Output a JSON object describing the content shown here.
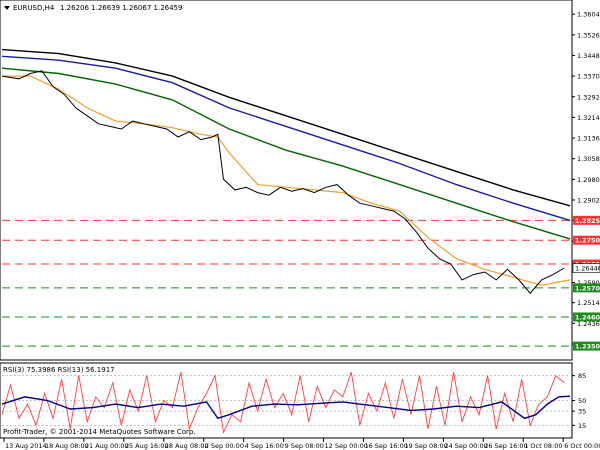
{
  "window": {
    "symbol": "EURUSD,H4",
    "ohlc": "1.26206 1.26639 1.26067 1.26459",
    "rsi_header": "RSI(3) 75.3986  RSI(13) 56.1917",
    "copyright": "Profit-Trader, © 2001-2014 MetaQuotes Software Corp.",
    "menu_icon": "triangle-down-icon"
  },
  "colors": {
    "sma_black": "#000000",
    "sma_blue": "#1a1aa0",
    "sma_green": "#006400",
    "sma_orange": "#f0a030",
    "rsi_fast": "#ff4040",
    "rsi_slow": "#00008b",
    "res_lines": "#ff3333",
    "sup_lines": "#1f8a1f"
  },
  "chart_data": {
    "type": "line",
    "price_axis": {
      "labels": [
        "1.36040",
        "1.35260",
        "1.34480",
        "1.33700",
        "1.32920",
        "1.32140",
        "1.31360",
        "1.30580",
        "1.29800",
        "1.29020",
        "1.28240",
        "1.27460",
        "1.26680",
        "1.25900",
        "1.25140",
        "1.24360",
        "1.23580"
      ],
      "ylim": [
        1.2305,
        1.365
      ]
    },
    "time_axis": {
      "labels": [
        "13 Aug 2014",
        "18 Aug 08:00",
        "21 Aug 00:00",
        "25 Aug 16:00",
        "28 Aug 08:00",
        "2 Sep 00:00",
        "4 Sep 16:00",
        "9 Sep 08:00",
        "12 Sep 00:00",
        "16 Sep 16:00",
        "19 Sep 08:00",
        "24 Sep 00:00",
        "26 Sep 16:00",
        "1 Oct 08:00",
        "6 Oct 00:00"
      ],
      "xlim": [
        0,
        100
      ]
    },
    "current_price": {
      "label": "1.26446",
      "value": 1.26446
    },
    "levels": [
      {
        "label": "1.28250",
        "value": 1.2825,
        "type": "resistance"
      },
      {
        "label": "1.27500",
        "value": 1.275,
        "type": "resistance"
      },
      {
        "label": "1.26600",
        "value": 1.266,
        "type": "resistance"
      },
      {
        "label": "1.25700",
        "value": 1.257,
        "type": "support"
      },
      {
        "label": "1.24600",
        "value": 1.246,
        "type": "support"
      },
      {
        "label": "1.23500",
        "value": 1.235,
        "type": "support"
      }
    ],
    "price": {
      "x": [
        0,
        3,
        5,
        7,
        9,
        11,
        13,
        15,
        17,
        19,
        21,
        23,
        25,
        27,
        29,
        31,
        33,
        35,
        37,
        38,
        39,
        41,
        43,
        45,
        47,
        49,
        51,
        53,
        55,
        57,
        59,
        61,
        63,
        65,
        67,
        69,
        71,
        73,
        75,
        77,
        79,
        81,
        83,
        85,
        87,
        89,
        91,
        93,
        95,
        97,
        99
      ],
      "values": [
        1.337,
        1.336,
        1.338,
        1.339,
        1.333,
        1.33,
        1.325,
        1.322,
        1.319,
        1.318,
        1.317,
        1.32,
        1.319,
        1.318,
        1.317,
        1.314,
        1.316,
        1.313,
        1.314,
        1.315,
        1.298,
        1.294,
        1.295,
        1.293,
        1.292,
        1.295,
        1.2935,
        1.2945,
        1.293,
        1.295,
        1.296,
        1.292,
        1.289,
        1.288,
        1.287,
        1.286,
        1.283,
        1.278,
        1.272,
        1.268,
        1.266,
        1.26,
        1.262,
        1.263,
        1.26,
        1.264,
        1.26,
        1.255,
        1.26,
        1.262,
        1.2645
      ]
    },
    "series": [
      {
        "color_key": "sma_orange",
        "x": [
          0,
          5,
          10,
          15,
          20,
          25,
          30,
          35,
          38,
          40,
          45,
          50,
          55,
          60,
          65,
          70,
          75,
          80,
          85,
          90,
          95,
          100
        ],
        "values": [
          1.337,
          1.337,
          1.332,
          1.325,
          1.32,
          1.319,
          1.3175,
          1.315,
          1.314,
          1.308,
          1.296,
          1.295,
          1.294,
          1.293,
          1.289,
          1.286,
          1.276,
          1.268,
          1.264,
          1.261,
          1.258,
          1.26
        ]
      },
      {
        "color_key": "sma_green",
        "x": [
          0,
          10,
          20,
          30,
          40,
          50,
          60,
          70,
          80,
          90,
          100
        ],
        "values": [
          1.34,
          1.338,
          1.334,
          1.328,
          1.317,
          1.309,
          1.303,
          1.296,
          1.289,
          1.282,
          1.2755
        ]
      },
      {
        "color_key": "sma_blue",
        "x": [
          0,
          10,
          20,
          30,
          40,
          50,
          60,
          70,
          80,
          90,
          100
        ],
        "values": [
          1.3445,
          1.343,
          1.34,
          1.3345,
          1.325,
          1.318,
          1.311,
          1.304,
          1.296,
          1.289,
          1.2825
        ]
      },
      {
        "color_key": "sma_black",
        "x": [
          0,
          10,
          20,
          30,
          40,
          50,
          60,
          70,
          80,
          90,
          100
        ],
        "values": [
          1.347,
          1.3455,
          1.342,
          1.337,
          1.329,
          1.322,
          1.315,
          1.308,
          1.301,
          1.294,
          1.288
        ]
      }
    ],
    "rsi": {
      "axis_labels": [
        "85",
        "50",
        "35",
        "15"
      ],
      "ylim": [
        0,
        100
      ],
      "levels": [
        15,
        35,
        50,
        85
      ],
      "fast": {
        "color_key": "rsi_fast",
        "x": [
          0,
          1.5,
          3,
          4.5,
          6,
          7.5,
          9,
          10.5,
          12,
          13.5,
          15,
          16.5,
          18,
          19.5,
          21,
          22.5,
          24,
          25.5,
          27,
          28.5,
          30,
          31.5,
          33,
          34.5,
          36,
          37.5,
          39,
          40.5,
          42,
          43.5,
          45,
          46.5,
          48,
          49.5,
          51,
          52.5,
          54,
          55.5,
          57,
          58.5,
          60,
          61.5,
          63,
          64.5,
          66,
          67.5,
          69,
          70.5,
          72,
          73.5,
          75,
          76.5,
          78,
          79.5,
          81,
          82.5,
          84,
          85.5,
          87,
          88.5,
          90,
          91.5,
          93,
          94.5,
          96,
          97.5,
          99
        ],
        "values": [
          30,
          72,
          25,
          45,
          15,
          60,
          25,
          80,
          10,
          85,
          20,
          55,
          40,
          75,
          15,
          65,
          35,
          85,
          20,
          50,
          40,
          90,
          10,
          40,
          60,
          85,
          5,
          30,
          20,
          75,
          35,
          80,
          40,
          60,
          30,
          85,
          20,
          70,
          40,
          65,
          55,
          90,
          15,
          60,
          35,
          75,
          25,
          80,
          30,
          85,
          10,
          70,
          15,
          90,
          20,
          55,
          30,
          85,
          10,
          60,
          20,
          80,
          15,
          45,
          55,
          85,
          75
        ]
      },
      "slow": {
        "color_key": "rsi_slow",
        "x": [
          0,
          4,
          8,
          12,
          16,
          20,
          24,
          28,
          32,
          36,
          38,
          40,
          44,
          48,
          52,
          56,
          60,
          64,
          68,
          72,
          76,
          80,
          84,
          88,
          92,
          94,
          96,
          98,
          100
        ],
        "values": [
          45,
          55,
          50,
          38,
          40,
          45,
          40,
          45,
          42,
          48,
          25,
          30,
          42,
          45,
          44,
          46,
          48,
          44,
          40,
          36,
          38,
          42,
          40,
          48,
          25,
          30,
          45,
          55,
          56
        ]
      }
    }
  }
}
